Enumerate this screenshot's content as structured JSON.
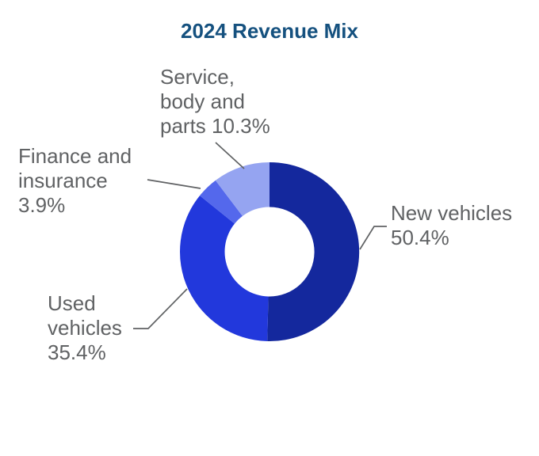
{
  "title": "2024 Revenue Mix",
  "colors": {
    "title": "#15517F",
    "callout_text": "#606264",
    "leader_line": "#606264",
    "background": "#FFFFFF"
  },
  "chart_data": {
    "type": "pie",
    "donut": true,
    "start_angle": "top",
    "direction": "clockwise",
    "title": "2024 Revenue Mix",
    "slices": [
      {
        "label": "New vehicles",
        "value": 50.4,
        "color": "#14289D"
      },
      {
        "label": "Used vehicles",
        "value": 35.4,
        "color": "#2238DC"
      },
      {
        "label": "Finance and insurance",
        "value": 3.9,
        "color": "#5468EC"
      },
      {
        "label": "Service, body and parts",
        "value": 10.3,
        "color": "#95A4F1"
      }
    ],
    "callouts": {
      "service": "Service,\nbody and\nparts 10.3%",
      "finance": "Finance and\ninsurance\n3.9%",
      "used": "Used\nvehicles\n35.4%",
      "new": "New vehicles\n50.4%"
    }
  }
}
